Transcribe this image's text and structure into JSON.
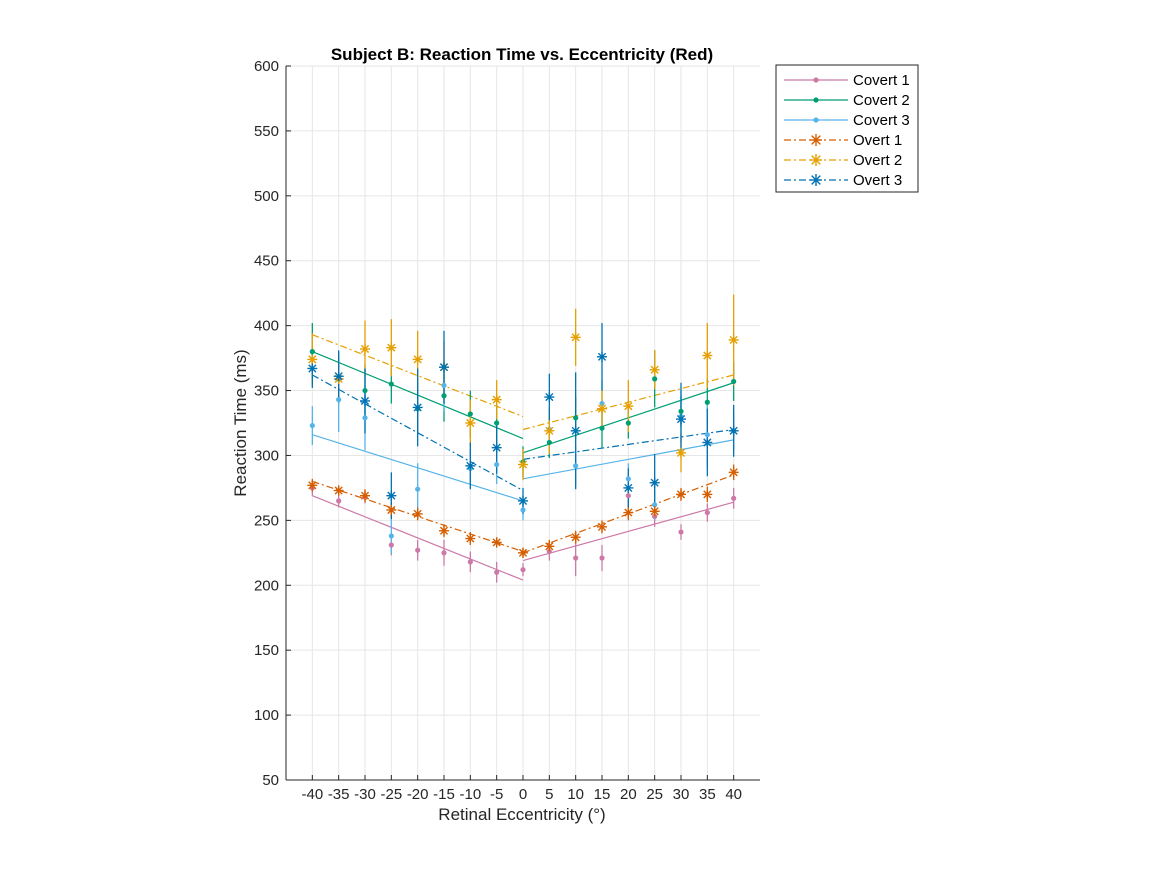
{
  "chart_data": {
    "type": "line",
    "title": "Subject B: Reaction Time vs. Eccentricity (Red)",
    "xlabel": "Retinal Eccentricity (°)",
    "ylabel": "Reaction Time (ms)",
    "xlim": [
      -45,
      45
    ],
    "ylim": [
      50,
      600
    ],
    "xticks": [
      -40,
      -35,
      -30,
      -25,
      -20,
      -15,
      -10,
      -5,
      0,
      5,
      10,
      15,
      20,
      25,
      30,
      35,
      40
    ],
    "xtick_labels": [
      "-40",
      "-35",
      "-30",
      "-25",
      "-20",
      "-15",
      "-10",
      "-5",
      "0",
      "5",
      "10",
      "15",
      "20",
      "25",
      "30",
      "35",
      "40"
    ],
    "yticks": [
      50,
      100,
      150,
      200,
      250,
      300,
      350,
      400,
      450,
      500,
      550,
      600
    ],
    "ytick_labels": [
      "50",
      "100",
      "150",
      "200",
      "250",
      "300",
      "350",
      "400",
      "450",
      "500",
      "550",
      "600"
    ],
    "grid": true,
    "legend_position": "outside-top-right",
    "x": [
      -40,
      -35,
      -30,
      -25,
      -20,
      -15,
      -10,
      -5,
      0,
      5,
      10,
      15,
      20,
      25,
      30,
      35,
      40
    ],
    "series": [
      {
        "name": "Covert 1",
        "color": "#CC79A7",
        "marker": "dot",
        "line": "solid",
        "values": [
          275,
          265,
          268,
          231,
          227,
          225,
          218,
          210,
          212,
          226,
          221,
          221,
          269,
          253,
          241,
          256,
          267
        ],
        "err": [
          6,
          5,
          5,
          8,
          8,
          10,
          8,
          8,
          5,
          7,
          14,
          10,
          8,
          8,
          6,
          7,
          8
        ],
        "fit_left": [
          [
            -40,
            269
          ],
          [
            0,
            204
          ]
        ],
        "fit_right": [
          [
            0,
            219
          ],
          [
            40,
            264
          ]
        ]
      },
      {
        "name": "Covert 2",
        "color": "#009E73",
        "marker": "dot",
        "line": "solid",
        "values": [
          380,
          359,
          350,
          355,
          336,
          346,
          332,
          325,
          295,
          310,
          329,
          321,
          325,
          359,
          334,
          341,
          357
        ],
        "err": [
          22,
          20,
          20,
          15,
          20,
          20,
          18,
          15,
          12,
          12,
          16,
          15,
          12,
          22,
          12,
          18,
          15
        ],
        "fit_left": [
          [
            -40,
            380
          ],
          [
            0,
            313
          ]
        ],
        "fit_right": [
          [
            0,
            302
          ],
          [
            40,
            356
          ]
        ]
      },
      {
        "name": "Covert 3",
        "color": "#56B4E9",
        "marker": "dot",
        "line": "solid",
        "values": [
          323,
          343,
          329,
          238,
          274,
          354,
          290,
          293,
          258,
          320,
          292,
          340,
          282,
          262,
          330,
          316,
          319
        ],
        "err": [
          15,
          25,
          25,
          14,
          20,
          20,
          15,
          15,
          8,
          15,
          15,
          18,
          12,
          12,
          20,
          25,
          15
        ],
        "fit_left": [
          [
            -40,
            316
          ],
          [
            0,
            265
          ]
        ],
        "fit_right": [
          [
            0,
            282
          ],
          [
            40,
            312
          ]
        ]
      },
      {
        "name": "Overt 1",
        "color": "#D55E00",
        "marker": "star",
        "line": "dashdot",
        "values": [
          277,
          273,
          269,
          258,
          255,
          242,
          236,
          233,
          225,
          230,
          237,
          245,
          256,
          257,
          270,
          270,
          287
        ],
        "err": [
          5,
          4,
          5,
          6,
          5,
          5,
          5,
          4,
          4,
          5,
          5,
          5,
          6,
          6,
          5,
          6,
          6
        ],
        "fit_left": [
          [
            -40,
            280
          ],
          [
            0,
            226
          ]
        ],
        "fit_right": [
          [
            0,
            225
          ],
          [
            40,
            285
          ]
        ]
      },
      {
        "name": "Overt 2",
        "color": "#E69F00",
        "marker": "star",
        "line": "dashdot",
        "values": [
          374,
          359,
          382,
          383,
          374,
          368,
          325,
          343,
          293,
          319,
          391,
          336,
          338,
          366,
          302,
          377,
          389
        ],
        "err": [
          20,
          18,
          22,
          22,
          22,
          20,
          18,
          15,
          12,
          18,
          22,
          15,
          20,
          15,
          15,
          25,
          35
        ],
        "fit_left": [
          [
            -40,
            393
          ],
          [
            0,
            330
          ]
        ],
        "fit_right": [
          [
            0,
            320
          ],
          [
            40,
            362
          ]
        ]
      },
      {
        "name": "Overt 3",
        "color": "#0072B2",
        "marker": "star",
        "line": "dashdot",
        "values": [
          367,
          361,
          342,
          269,
          337,
          368,
          292,
          306,
          265,
          345,
          319,
          376,
          275,
          279,
          328,
          310,
          319
        ],
        "err": [
          15,
          20,
          25,
          18,
          30,
          28,
          18,
          20,
          10,
          18,
          45,
          26,
          15,
          22,
          28,
          26,
          20
        ],
        "fit_left": [
          [
            -40,
            362
          ],
          [
            0,
            273
          ]
        ],
        "fit_right": [
          [
            0,
            297
          ],
          [
            40,
            320
          ]
        ]
      }
    ]
  }
}
